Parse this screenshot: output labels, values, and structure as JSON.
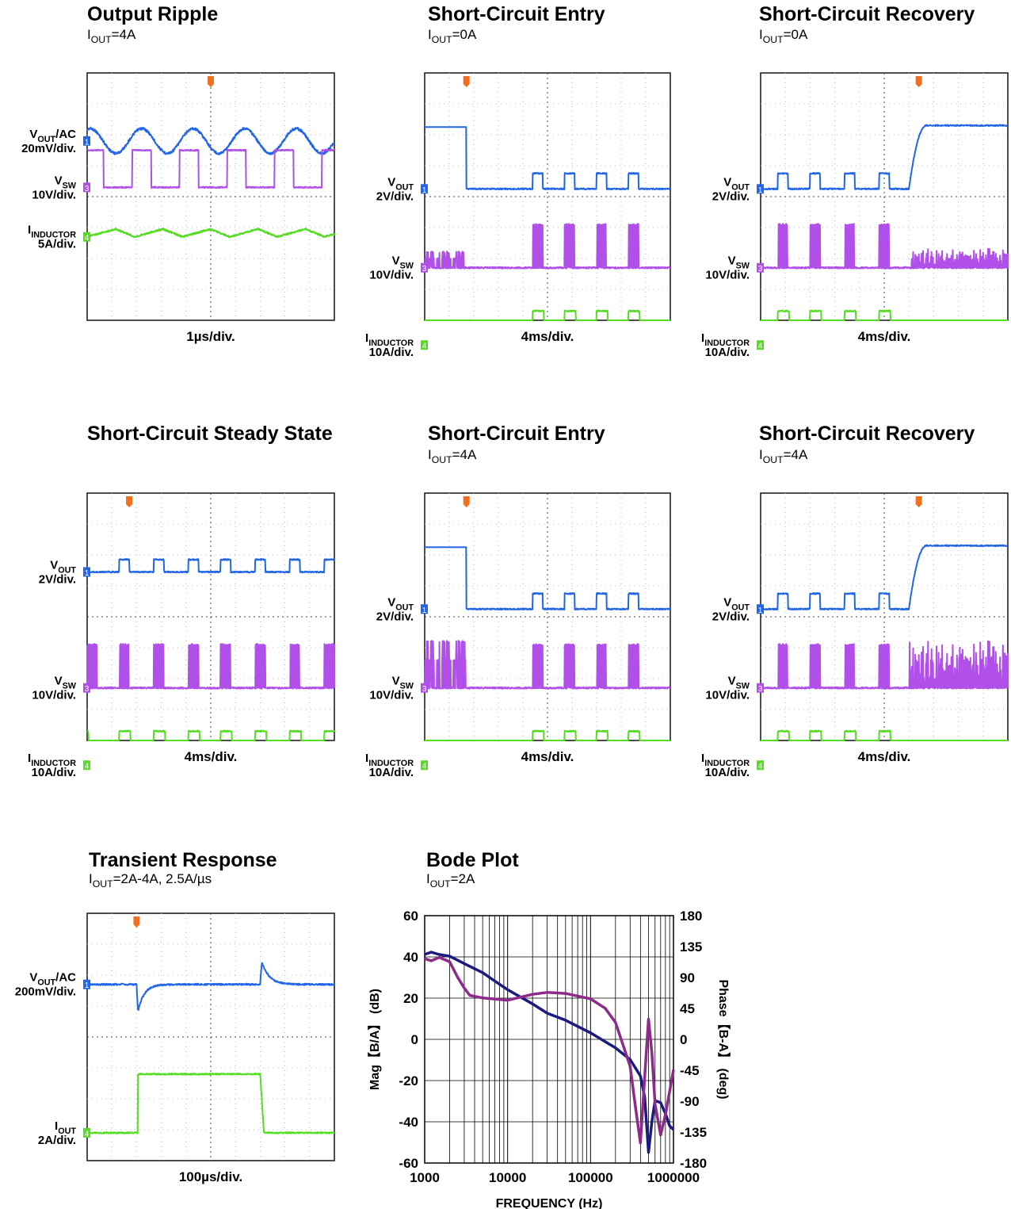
{
  "chart_data": [
    {
      "type": "line",
      "title": "Output Ripple",
      "subtitle": {
        "main": "I",
        "sub": "OUT",
        "rest": "=4A"
      },
      "timebase": "1µs/div.",
      "channels": [
        {
          "label": {
            "main": "V",
            "sub": "OUT",
            "rest": "/AC"
          },
          "scale": "20mV/div.",
          "marker": "1",
          "color": "#2266e6",
          "level_div": 2.2,
          "wave": "sine",
          "cycles": 4.8,
          "amp_div": 0.4,
          "noise_div": 0.08
        },
        {
          "label": {
            "main": "V",
            "sub": "SW",
            "rest": ""
          },
          "scale": "10V/div.",
          "marker": "3",
          "color": "#b050e8",
          "level_div": 3.7,
          "wave": "square",
          "period_div": 1.92,
          "duty": 0.4,
          "amp_div": 1.2,
          "offset_div": 0.1
        },
        {
          "label": {
            "main": "I",
            "sub": "INDUCTOR",
            "rest": ""
          },
          "scale": "5A/div.",
          "marker": "4",
          "color": "#55dd22",
          "level_div": 5.3,
          "wave": "triangle",
          "period_div": 1.92,
          "amp_div": 0.25
        }
      ]
    },
    {
      "type": "line",
      "title": "Short-Circuit Entry",
      "subtitle": {
        "main": "I",
        "sub": "OUT",
        "rest": "=0A"
      },
      "timebase": "4ms/div.",
      "channels": [
        {
          "label": {
            "main": "V",
            "sub": "OUT",
            "rest": ""
          },
          "scale": "2V/div.",
          "marker": "1",
          "color": "#2266e6",
          "level_div": 3.75,
          "wave": "pulses",
          "high_div": 2.0,
          "pulse_div": 0.5,
          "pre_until_div": 1.7,
          "pre_level_div": 1.75,
          "pulse_starts_div": [
            4.4,
            5.7,
            7.0,
            8.3
          ],
          "pulse_width_div": 0.4
        },
        {
          "label": {
            "main": "V",
            "sub": "SW",
            "rest": ""
          },
          "scale": "10V/div.",
          "marker": "3",
          "color": "#b050e8",
          "level_div": 6.3,
          "wave": "bursts",
          "amp_div": 1.4,
          "pre_until_div": 1.6,
          "pre_amp_div": 0.5,
          "pulse_starts_div": [
            4.4,
            5.7,
            7.0,
            8.3
          ],
          "pulse_width_div": 0.4
        },
        {
          "label": {
            "main": "I",
            "sub": "INDUCTOR",
            "rest": ""
          },
          "scale": "10A/div.",
          "marker": "4",
          "color": "#55dd22",
          "level_div": 8.8,
          "wave": "pulses",
          "pulse_div": 1.1,
          "spike_at_div": 1.8,
          "pulse_starts_div": [
            4.4,
            5.7,
            7.0,
            8.3
          ],
          "pulse_width_div": 0.45
        }
      ]
    },
    {
      "type": "line",
      "title": "Short-Circuit Recovery",
      "subtitle": {
        "main": "I",
        "sub": "OUT",
        "rest": "=0A"
      },
      "timebase": "4ms/div.",
      "channels": [
        {
          "label": {
            "main": "V",
            "sub": "OUT",
            "rest": ""
          },
          "scale": "2V/div.",
          "marker": "1",
          "color": "#2266e6",
          "level_div": 3.75,
          "wave": "recovery",
          "high_div": 2.0,
          "pulse_div": 0.5,
          "pulse_starts_div": [
            0.7,
            2.0,
            3.4,
            4.8
          ],
          "pulse_width_div": 0.4,
          "rise_at_div": 6.0,
          "rise_len_div": 0.7,
          "post_level_div": 1.7
        },
        {
          "label": {
            "main": "V",
            "sub": "SW",
            "rest": ""
          },
          "scale": "10V/div.",
          "marker": "3",
          "color": "#b050e8",
          "level_div": 6.3,
          "wave": "bursts",
          "amp_div": 1.4,
          "pulse_starts_div": [
            0.7,
            2.0,
            3.4,
            4.8
          ],
          "pulse_width_div": 0.4,
          "post_from_div": 6.1,
          "post_amp_div": 0.6
        },
        {
          "label": {
            "main": "I",
            "sub": "INDUCTOR",
            "rest": ""
          },
          "scale": "10A/div.",
          "marker": "4",
          "color": "#55dd22",
          "level_div": 8.8,
          "wave": "pulses",
          "pulse_div": 1.1,
          "pulse_starts_div": [
            0.7,
            2.0,
            3.4,
            4.8
          ],
          "pulse_width_div": 0.45
        }
      ]
    },
    {
      "type": "line",
      "title": "Short-Circuit Steady State",
      "subtitle": null,
      "timebase": "4ms/div.",
      "channels": [
        {
          "label": {
            "main": "V",
            "sub": "OUT",
            "rest": ""
          },
          "scale": "2V/div.",
          "marker": "1",
          "color": "#2266e6",
          "level_div": 2.55,
          "wave": "pulses",
          "pulse_div": 0.4,
          "pulse_starts_div": [
            -0.5,
            1.3,
            2.7,
            4.1,
            5.4,
            6.8,
            8.2,
            9.6
          ],
          "pulse_width_div": 0.4
        },
        {
          "label": {
            "main": "V",
            "sub": "SW",
            "rest": ""
          },
          "scale": "10V/div.",
          "marker": "3",
          "color": "#b050e8",
          "level_div": 6.3,
          "wave": "bursts",
          "amp_div": 1.4,
          "pulse_starts_div": [
            0.0,
            1.3,
            2.7,
            4.1,
            5.4,
            6.8,
            8.2,
            9.6
          ],
          "pulse_width_div": 0.4
        },
        {
          "label": {
            "main": "I",
            "sub": "INDUCTOR",
            "rest": ""
          },
          "scale": "10A/div.",
          "marker": "4",
          "color": "#55dd22",
          "level_div": 8.8,
          "wave": "pulses",
          "pulse_div": 1.1,
          "pulse_starts_div": [
            -0.4,
            1.3,
            2.7,
            4.1,
            5.4,
            6.8,
            8.2,
            9.6
          ],
          "pulse_width_div": 0.45
        }
      ]
    },
    {
      "type": "line",
      "title": "Short-Circuit Entry",
      "subtitle": {
        "main": "I",
        "sub": "OUT",
        "rest": "=4A"
      },
      "timebase": "4ms/div.",
      "channels": [
        {
          "label": {
            "main": "V",
            "sub": "OUT",
            "rest": ""
          },
          "scale": "2V/div.",
          "marker": "1",
          "color": "#2266e6",
          "level_div": 3.75,
          "wave": "pulses",
          "high_div": 2.0,
          "pulse_div": 0.5,
          "pre_until_div": 1.7,
          "pre_level_div": 1.75,
          "pulse_starts_div": [
            4.4,
            5.7,
            7.0,
            8.3
          ],
          "pulse_width_div": 0.4
        },
        {
          "label": {
            "main": "V",
            "sub": "SW",
            "rest": ""
          },
          "scale": "10V/div.",
          "marker": "3",
          "color": "#b050e8",
          "level_div": 6.3,
          "wave": "bursts",
          "amp_div": 1.4,
          "pre_until_div": 1.7,
          "pre_amp_div": 1.5,
          "pulse_starts_div": [
            4.4,
            5.7,
            7.0,
            8.3
          ],
          "pulse_width_div": 0.4
        },
        {
          "label": {
            "main": "I",
            "sub": "INDUCTOR",
            "rest": ""
          },
          "scale": "10A/div.",
          "marker": "4",
          "color": "#55dd22",
          "level_div": 8.8,
          "wave": "pulses",
          "pulse_div": 1.1,
          "pre_until_div": 1.7,
          "pre_level_div": 8.2,
          "pulse_starts_div": [
            4.4,
            5.7,
            7.0,
            8.3
          ],
          "pulse_width_div": 0.45
        }
      ]
    },
    {
      "type": "line",
      "title": "Short-Circuit Recovery",
      "subtitle": {
        "main": "I",
        "sub": "OUT",
        "rest": "=4A"
      },
      "timebase": "4ms/div.",
      "channels": [
        {
          "label": {
            "main": "V",
            "sub": "OUT",
            "rest": ""
          },
          "scale": "2V/div.",
          "marker": "1",
          "color": "#2266e6",
          "level_div": 3.75,
          "wave": "recovery",
          "high_div": 2.0,
          "pulse_div": 0.5,
          "pulse_starts_div": [
            0.7,
            2.0,
            3.4,
            4.8
          ],
          "pulse_width_div": 0.4,
          "rise_at_div": 6.0,
          "rise_len_div": 0.7,
          "post_level_div": 1.7
        },
        {
          "label": {
            "main": "V",
            "sub": "SW",
            "rest": ""
          },
          "scale": "10V/div.",
          "marker": "3",
          "color": "#b050e8",
          "level_div": 6.3,
          "wave": "bursts",
          "amp_div": 1.4,
          "pulse_starts_div": [
            0.7,
            2.0,
            3.4,
            4.8
          ],
          "pulse_width_div": 0.4,
          "post_from_div": 6.0,
          "post_amp_div": 1.5
        },
        {
          "label": {
            "main": "I",
            "sub": "INDUCTOR",
            "rest": ""
          },
          "scale": "10A/div.",
          "marker": "4",
          "color": "#55dd22",
          "level_div": 8.8,
          "wave": "pulses",
          "pulse_div": 1.1,
          "pulse_starts_div": [
            0.7,
            2.0,
            3.4,
            4.8
          ],
          "pulse_width_div": 0.45,
          "post_from_div": 6.3,
          "post_level_div": 8.2
        }
      ]
    },
    {
      "type": "line",
      "title": "Transient Response",
      "subtitle": {
        "main": "I",
        "sub": "OUT",
        "rest": "=2A-4A, 2.5A/µs"
      },
      "timebase": "100µs/div.",
      "channels": [
        {
          "label": {
            "main": "V",
            "sub": "OUT",
            "rest": "/AC"
          },
          "scale": "200mV/div.",
          "marker": "1",
          "color": "#2266e6",
          "level_div": 2.3,
          "wave": "transient",
          "dip_at_div": 2.0,
          "dip_div": 1.1,
          "bump_at_div": 7.0,
          "bump_div": 0.9
        },
        {
          "label": {
            "main": "I",
            "sub": "OUT",
            "rest": ""
          },
          "scale": "2A/div.",
          "marker": "4",
          "color": "#55dd22",
          "level_div": 7.1,
          "wave": "step",
          "high_div": 5.2,
          "step_up_div": 2.05,
          "step_down_div": 7.0
        }
      ]
    },
    {
      "type": "line",
      "title": "Bode Plot",
      "subtitle": {
        "main": "I",
        "sub": "OUT",
        "rest": "=2A"
      },
      "xlabel": "FREQUENCY (Hz)",
      "ylabel_left": "Mag【B/A】 (dB)",
      "ylabel_right": "Phase【B-A】 (deg)",
      "x_scale": "log",
      "xlim": [
        1000,
        1000000
      ],
      "ylim_left": [
        -60,
        60
      ],
      "ylim_right": [
        -180,
        180
      ],
      "x_ticks": [
        "1000",
        "10000",
        "100000",
        "1000000"
      ],
      "y_ticks_left": [
        "60",
        "40",
        "20",
        "0",
        "-20",
        "-40",
        "-60"
      ],
      "y_ticks_right": [
        "180",
        "135",
        "90",
        "45",
        "0",
        "-45",
        "-90",
        "-135",
        "-180"
      ],
      "series": [
        {
          "axis": "left",
          "color": "#1a1a80",
          "x": [
            1000,
            1200,
            1500,
            2000,
            3000,
            5000,
            7000,
            10000,
            20000,
            30000,
            50000,
            100000,
            200000,
            300000,
            400000,
            450000,
            500000,
            550000,
            600000,
            700000,
            800000,
            900000,
            1000000
          ],
          "y": [
            41,
            42,
            41,
            40,
            37,
            32,
            28,
            24,
            17,
            13,
            9,
            3,
            -4,
            -10,
            -18,
            -28,
            -55,
            -40,
            -30,
            -31,
            -36,
            -42,
            -44
          ]
        },
        {
          "axis": "right",
          "color": "#8e2a8a",
          "x": [
            1000,
            1200,
            1500,
            2000,
            2500,
            3000,
            3500,
            5000,
            10000,
            20000,
            30000,
            50000,
            100000,
            150000,
            200000,
            300000,
            350000,
            400000,
            450000,
            500000,
            550000,
            600000,
            700000,
            800000,
            900000,
            1000000
          ],
          "y": [
            118,
            115,
            120,
            112,
            90,
            75,
            65,
            60,
            57,
            66,
            68,
            67,
            58,
            45,
            25,
            -40,
            -100,
            -150,
            -55,
            30,
            -20,
            -95,
            -140,
            -110,
            -75,
            -45
          ]
        }
      ]
    }
  ]
}
